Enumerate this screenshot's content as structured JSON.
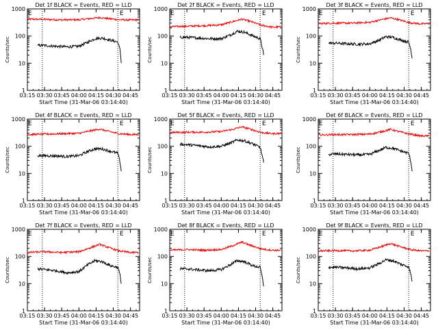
{
  "figure": {
    "background": "#ffffff",
    "axis_color": "#000000",
    "events_color": "#000000",
    "lld_color": "#ff0000",
    "marker_label": "E"
  },
  "chart_data": [
    {
      "type": "line",
      "title": "Det 1f BLACK = Events, RED = LLD",
      "xlabel": "Start Time (31-Mar-06 03:14:40)",
      "ylabel": "Counts/sec",
      "yscale": "log",
      "ylim": [
        1,
        1000
      ],
      "xlim": [
        "03:15",
        "04:53"
      ],
      "xticks": [
        "03:15",
        "03:30",
        "03:45",
        "04:00",
        "04:15",
        "04:30",
        "04:45"
      ],
      "yticks": [
        "1",
        "10",
        "100",
        "1000"
      ],
      "vlines": [
        "03:28",
        "04:34"
      ],
      "marker_time": "04:35",
      "series": [
        {
          "name": "LLD",
          "color": "#ff0000",
          "t": [
            "03:15",
            "03:30",
            "03:45",
            "04:00",
            "04:10",
            "04:18",
            "04:25",
            "04:35",
            "04:45",
            "04:52"
          ],
          "values": [
            420,
            410,
            395,
            400,
            440,
            480,
            440,
            400,
            390,
            400
          ]
        },
        {
          "name": "Events",
          "color": "#000000",
          "t": [
            "03:24",
            "03:30",
            "03:40",
            "03:50",
            "04:00",
            "04:08",
            "04:14",
            "04:20",
            "04:28",
            "04:34",
            "04:36",
            "04:37"
          ],
          "values": [
            45,
            45,
            42,
            40,
            42,
            60,
            80,
            85,
            70,
            60,
            30,
            10
          ]
        }
      ]
    },
    {
      "type": "line",
      "title": "Det 2f BLACK = Events, RED = LLD",
      "xlabel": "Start Time (31-Mar-06 03:14:40)",
      "ylabel": "Counts/sec",
      "yscale": "log",
      "ylim": [
        1,
        1000
      ],
      "xlim": [
        "03:15",
        "04:53"
      ],
      "xticks": [
        "03:15",
        "03:30",
        "03:45",
        "04:00",
        "04:15",
        "04:30",
        "04:45"
      ],
      "yticks": [
        "1",
        "10",
        "100",
        "1000"
      ],
      "vlines": [
        "03:28",
        "04:34"
      ],
      "marker_time": "04:35",
      "series": [
        {
          "name": "LLD",
          "color": "#ff0000",
          "t": [
            "03:15",
            "03:30",
            "03:45",
            "04:00",
            "04:10",
            "04:18",
            "04:25",
            "04:35",
            "04:45",
            "04:52"
          ],
          "values": [
            220,
            230,
            240,
            260,
            340,
            420,
            350,
            250,
            210,
            220
          ]
        },
        {
          "name": "Events",
          "color": "#000000",
          "t": [
            "03:24",
            "03:30",
            "03:40",
            "03:50",
            "04:00",
            "04:08",
            "04:14",
            "04:20",
            "04:28",
            "04:34",
            "04:36",
            "04:37"
          ],
          "values": [
            90,
            90,
            85,
            80,
            80,
            110,
            150,
            140,
            100,
            80,
            35,
            20
          ]
        }
      ]
    },
    {
      "type": "line",
      "title": "Det 3f BLACK = Events, RED = LLD",
      "xlabel": "Start Time (31-Mar-06 03:14:40)",
      "ylabel": "Counts/sec",
      "yscale": "log",
      "ylim": [
        1,
        1000
      ],
      "xlim": [
        "03:15",
        "04:53"
      ],
      "xticks": [
        "03:15",
        "03:30",
        "03:45",
        "04:00",
        "04:15",
        "04:30",
        "04:45"
      ],
      "yticks": [
        "1",
        "10",
        "100",
        "1000"
      ],
      "vlines": [
        "03:28",
        "04:34"
      ],
      "marker_time": "04:35",
      "series": [
        {
          "name": "LLD",
          "color": "#ff0000",
          "t": [
            "03:15",
            "03:30",
            "03:45",
            "04:00",
            "04:10",
            "04:18",
            "04:25",
            "04:35",
            "04:45",
            "04:52"
          ],
          "values": [
            290,
            300,
            300,
            320,
            400,
            470,
            400,
            310,
            280,
            290
          ]
        },
        {
          "name": "Events",
          "color": "#000000",
          "t": [
            "03:24",
            "03:30",
            "03:40",
            "03:50",
            "04:00",
            "04:08",
            "04:14",
            "04:20",
            "04:28",
            "04:34",
            "04:36",
            "04:37"
          ],
          "values": [
            55,
            55,
            52,
            50,
            52,
            70,
            95,
            90,
            70,
            60,
            30,
            15
          ]
        }
      ]
    },
    {
      "type": "line",
      "title": "Det 4f BLACK = Events, RED = LLD",
      "xlabel": "Start Time (31-Mar-06 03:14:40)",
      "ylabel": "Counts/sec",
      "yscale": "log",
      "ylim": [
        1,
        1000
      ],
      "xlim": [
        "03:15",
        "04:53"
      ],
      "xticks": [
        "03:15",
        "03:30",
        "03:45",
        "04:00",
        "04:15",
        "04:30",
        "04:45"
      ],
      "yticks": [
        "1",
        "10",
        "100",
        "1000"
      ],
      "vlines": [
        "03:28",
        "04:34"
      ],
      "marker_time": "04:35",
      "series": [
        {
          "name": "LLD",
          "color": "#ff0000",
          "t": [
            "03:15",
            "03:30",
            "03:45",
            "04:00",
            "04:10",
            "04:18",
            "04:25",
            "04:35",
            "04:45",
            "04:52"
          ],
          "values": [
            270,
            280,
            290,
            300,
            370,
            430,
            360,
            290,
            270,
            270
          ]
        },
        {
          "name": "Events",
          "color": "#000000",
          "t": [
            "03:24",
            "03:30",
            "03:40",
            "03:50",
            "04:00",
            "04:08",
            "04:14",
            "04:20",
            "04:28",
            "04:34",
            "04:36",
            "04:37"
          ],
          "values": [
            45,
            45,
            44,
            42,
            45,
            65,
            80,
            80,
            65,
            55,
            25,
            12
          ]
        }
      ]
    },
    {
      "type": "line",
      "title": "Det 5f BLACK = Events, RED = LLD",
      "xlabel": "Start Time (31-Mar-06 03:14:40)",
      "ylabel": "Counts/sec",
      "yscale": "log",
      "ylim": [
        1,
        1000
      ],
      "xlim": [
        "03:15",
        "04:53"
      ],
      "xticks": [
        "03:15",
        "03:30",
        "03:45",
        "04:00",
        "04:15",
        "04:30",
        "04:45"
      ],
      "yticks": [
        "1",
        "10",
        "100",
        "1000"
      ],
      "vlines": [
        "03:28",
        "04:34"
      ],
      "marker_time": "04:35",
      "series": [
        {
          "name": "LLD",
          "color": "#ff0000",
          "t": [
            "03:15",
            "03:30",
            "03:45",
            "04:00",
            "04:10",
            "04:18",
            "04:25",
            "04:35",
            "04:45",
            "04:52"
          ],
          "values": [
            320,
            330,
            330,
            350,
            420,
            520,
            430,
            320,
            290,
            300
          ]
        },
        {
          "name": "Events",
          "color": "#000000",
          "t": [
            "03:24",
            "03:30",
            "03:40",
            "03:50",
            "04:00",
            "04:08",
            "04:14",
            "04:20",
            "04:28",
            "04:34",
            "04:36",
            "04:37"
          ],
          "values": [
            120,
            115,
            105,
            95,
            100,
            130,
            170,
            160,
            120,
            90,
            40,
            25
          ]
        }
      ]
    },
    {
      "type": "line",
      "title": "Det 6f BLACK = Events, RED = LLD",
      "xlabel": "Start Time (31-Mar-06 03:14:40)",
      "ylabel": "Counts/sec",
      "yscale": "log",
      "ylim": [
        1,
        1000
      ],
      "xlim": [
        "03:15",
        "04:53"
      ],
      "xticks": [
        "03:15",
        "03:30",
        "03:45",
        "04:00",
        "04:15",
        "04:30",
        "04:45"
      ],
      "yticks": [
        "1",
        "10",
        "100",
        "1000"
      ],
      "vlines": [
        "03:28",
        "04:34"
      ],
      "marker_time": "04:35",
      "series": [
        {
          "name": "LLD",
          "color": "#ff0000",
          "t": [
            "03:15",
            "03:30",
            "03:45",
            "04:00",
            "04:10",
            "04:18",
            "04:25",
            "04:35",
            "04:45",
            "04:52"
          ],
          "values": [
            260,
            270,
            270,
            280,
            340,
            420,
            350,
            280,
            240,
            240
          ]
        },
        {
          "name": "Events",
          "color": "#000000",
          "t": [
            "03:24",
            "03:30",
            "03:40",
            "03:50",
            "04:00",
            "04:08",
            "04:14",
            "04:20",
            "04:28",
            "04:34",
            "04:36",
            "04:37"
          ],
          "values": [
            50,
            52,
            50,
            48,
            50,
            70,
            90,
            85,
            65,
            55,
            25,
            12
          ]
        }
      ]
    },
    {
      "type": "line",
      "title": "Det 7f BLACK = Events, RED = LLD",
      "xlabel": "Start Time (31-Mar-06 03:14:40)",
      "ylabel": "Counts/sec",
      "yscale": "log",
      "ylim": [
        1,
        1000
      ],
      "xlim": [
        "03:15",
        "04:53"
      ],
      "xticks": [
        "03:15",
        "03:30",
        "03:45",
        "04:00",
        "04:15",
        "04:30",
        "04:45"
      ],
      "yticks": [
        "1",
        "10",
        "100",
        "1000"
      ],
      "vlines": [
        "03:28",
        "04:34"
      ],
      "marker_time": "04:35",
      "series": [
        {
          "name": "LLD",
          "color": "#ff0000",
          "t": [
            "03:15",
            "03:30",
            "03:45",
            "04:00",
            "04:10",
            "04:18",
            "04:25",
            "04:35",
            "04:45",
            "04:52"
          ],
          "values": [
            140,
            150,
            140,
            150,
            210,
            280,
            220,
            160,
            140,
            140
          ]
        },
        {
          "name": "Events",
          "color": "#000000",
          "t": [
            "03:24",
            "03:30",
            "03:40",
            "03:50",
            "04:00",
            "04:08",
            "04:14",
            "04:20",
            "04:28",
            "04:34",
            "04:36",
            "04:37"
          ],
          "values": [
            35,
            33,
            30,
            25,
            28,
            50,
            70,
            65,
            45,
            40,
            20,
            10
          ]
        }
      ]
    },
    {
      "type": "line",
      "title": "Det 8f BLACK = Events, RED = LLD",
      "xlabel": "Start Time (31-Mar-06 03:14:40)",
      "ylabel": "Counts/sec",
      "yscale": "log",
      "ylim": [
        1,
        1000
      ],
      "xlim": [
        "03:15",
        "04:53"
      ],
      "xticks": [
        "03:15",
        "03:30",
        "03:45",
        "04:00",
        "04:15",
        "04:30",
        "04:45"
      ],
      "yticks": [
        "1",
        "10",
        "100",
        "1000"
      ],
      "vlines": [
        "03:28",
        "04:34"
      ],
      "marker_time": "04:35",
      "series": [
        {
          "name": "LLD",
          "color": "#ff0000",
          "t": [
            "03:15",
            "03:30",
            "03:45",
            "04:00",
            "04:10",
            "04:18",
            "04:25",
            "04:35",
            "04:45",
            "04:52"
          ],
          "values": [
            170,
            180,
            170,
            180,
            250,
            340,
            260,
            190,
            170,
            170
          ]
        },
        {
          "name": "Events",
          "color": "#000000",
          "t": [
            "03:24",
            "03:30",
            "03:40",
            "03:50",
            "04:00",
            "04:08",
            "04:14",
            "04:20",
            "04:28",
            "04:34",
            "04:36",
            "04:37"
          ],
          "values": [
            35,
            35,
            32,
            30,
            33,
            50,
            70,
            65,
            45,
            40,
            15,
            8
          ]
        }
      ]
    },
    {
      "type": "line",
      "title": "Det 9f BLACK = Events, RED = LLD",
      "xlabel": "Start Time (31-Mar-06 03:14:40)",
      "ylabel": "Counts/sec",
      "yscale": "log",
      "ylim": [
        1,
        1000
      ],
      "xlim": [
        "03:15",
        "04:53"
      ],
      "xticks": [
        "03:15",
        "03:30",
        "03:45",
        "04:00",
        "04:15",
        "04:30",
        "04:45"
      ],
      "yticks": [
        "1",
        "10",
        "100",
        "1000"
      ],
      "vlines": [
        "03:28",
        "04:34"
      ],
      "marker_time": "04:35",
      "series": [
        {
          "name": "LLD",
          "color": "#ff0000",
          "t": [
            "03:15",
            "03:30",
            "03:45",
            "04:00",
            "04:10",
            "04:18",
            "04:25",
            "04:35",
            "04:45",
            "04:52"
          ],
          "values": [
            160,
            165,
            160,
            170,
            230,
            300,
            240,
            180,
            160,
            160
          ]
        },
        {
          "name": "Events",
          "color": "#000000",
          "t": [
            "03:24",
            "03:30",
            "03:40",
            "03:50",
            "04:00",
            "04:08",
            "04:14",
            "04:20",
            "04:28",
            "04:34",
            "04:36",
            "04:37"
          ],
          "values": [
            40,
            40,
            38,
            35,
            38,
            55,
            75,
            70,
            50,
            42,
            20,
            12
          ]
        }
      ]
    }
  ]
}
